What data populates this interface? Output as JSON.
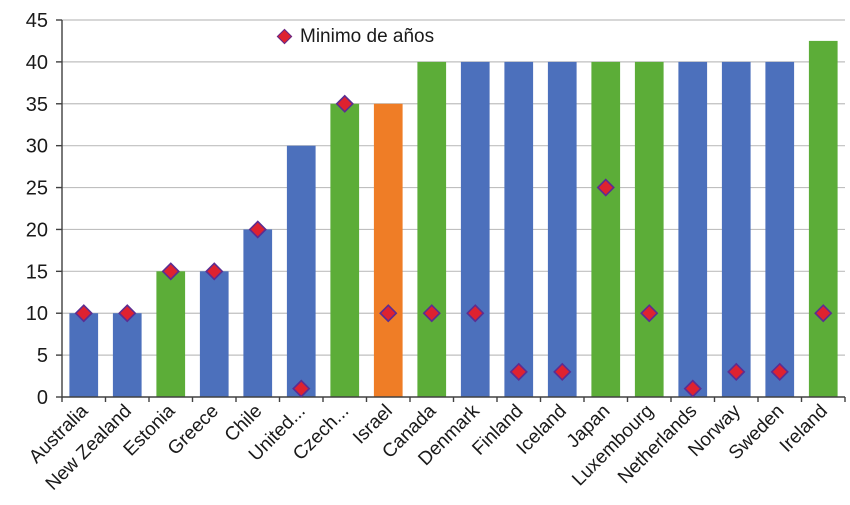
{
  "chart_data": {
    "type": "bar",
    "title": "",
    "xlabel": "",
    "ylabel": "",
    "legend_label": "Minimo de años",
    "legend_position": "top-center",
    "grid": true,
    "ylim": [
      0,
      45
    ],
    "yticks": [
      0,
      5,
      10,
      15,
      20,
      25,
      30,
      35,
      40,
      45
    ],
    "categories": [
      "Australia",
      "New Zealand",
      "Estonia",
      "Greece",
      "Chile",
      "United...",
      "Czech...",
      "Israel",
      "Canada",
      "Denmark",
      "Finland",
      "Iceland",
      "Japan",
      "Luxembourg",
      "Netherlands",
      "Norway",
      "Sweden",
      "Ireland"
    ],
    "series": [
      {
        "name": "",
        "type": "bar",
        "values": [
          10,
          10,
          15,
          15,
          20,
          30,
          35,
          35,
          40,
          40,
          40,
          40,
          40,
          40,
          40,
          40,
          40,
          42.5
        ],
        "color_keys": [
          "blue",
          "blue",
          "green",
          "blue",
          "blue",
          "blue",
          "green",
          "orange",
          "green",
          "blue",
          "blue",
          "blue",
          "green",
          "green",
          "blue",
          "blue",
          "blue",
          "green"
        ]
      },
      {
        "name": "Minimo de años",
        "type": "scatter",
        "marker": "diamond",
        "values": [
          10,
          10,
          15,
          15,
          20,
          1,
          35,
          10,
          10,
          10,
          3,
          3,
          25,
          10,
          1,
          3,
          3,
          10
        ]
      }
    ],
    "palette": {
      "blue": "#4c70bc",
      "green": "#5cad38",
      "orange": "#ef7d26",
      "marker_fill": "#de2230",
      "marker_edge": "#5c2d91",
      "gridline": "#bfbfbf",
      "axis": "#404040",
      "text": "#1a1a1a"
    }
  }
}
